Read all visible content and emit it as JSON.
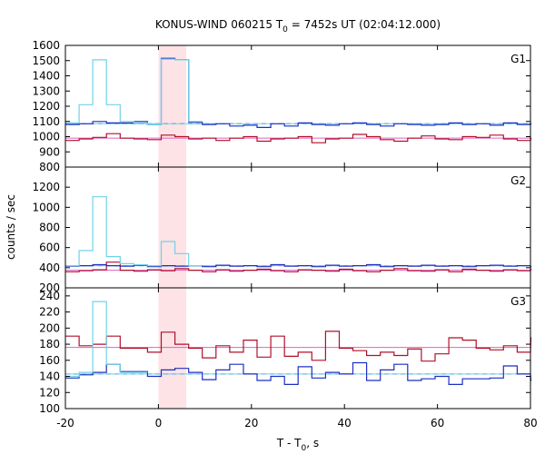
{
  "chart_data": {
    "type": "line",
    "title_main": "KONUS-WIND 060215 T",
    "title_sub": "0",
    "title_rest": " = 7452s UT (02:04:12.000)",
    "xlabel_main": "T - T",
    "xlabel_sub": "0",
    "xlabel_rest": ", s",
    "ylabel": "counts / sec",
    "xlim": [
      -20,
      80
    ],
    "xticks": [
      -20,
      0,
      20,
      40,
      60,
      80
    ],
    "interval_start": 0,
    "interval_end": 6,
    "colors": {
      "blue": "#1f2fc2",
      "cyan": "#6fd3e8",
      "red": "#b0102a",
      "pink": "#e060c0",
      "shade": "#fde3e6"
    },
    "panels": [
      {
        "label": "G1",
        "ylim": [
          800,
          1600
        ],
        "yticks": [
          800,
          900,
          1000,
          1100,
          1200,
          1300,
          1400,
          1500,
          1600
        ],
        "bg_blue": 1085,
        "bg_red": 990,
        "cyan": {
          "x0": -20,
          "dx": 2.944,
          "values": [
            1090,
            1210,
            1505,
            1210,
            1100,
            1090,
            1080,
            1510,
            1505,
            1100
          ]
        },
        "blue": {
          "x0": -20,
          "dx": 2.944,
          "values": [
            1080,
            1085,
            1100,
            1090,
            1090,
            1100,
            1080,
            1515,
            1505,
            1095,
            1080,
            1085,
            1070,
            1075,
            1060,
            1085,
            1070,
            1090,
            1080,
            1075,
            1085,
            1090,
            1080,
            1070,
            1085,
            1080,
            1075,
            1080,
            1090,
            1080,
            1085,
            1075,
            1090,
            1080,
            1085
          ]
        },
        "red": {
          "x0": -20,
          "dx": 2.944,
          "values": [
            975,
            985,
            995,
            1020,
            990,
            985,
            980,
            1010,
            1000,
            985,
            990,
            975,
            990,
            1000,
            970,
            985,
            990,
            1000,
            960,
            985,
            990,
            1015,
            1000,
            980,
            970,
            990,
            1005,
            985,
            980,
            1000,
            995,
            1010,
            985,
            975,
            990
          ]
        }
      },
      {
        "label": "G2",
        "ylim": [
          200,
          1400
        ],
        "yticks": [
          200,
          400,
          600,
          800,
          1000,
          1200
        ],
        "bg_blue": 420,
        "bg_red": 375,
        "cyan": {
          "x0": -20,
          "dx": 2.944,
          "values": [
            420,
            570,
            1105,
            510,
            440,
            430,
            420,
            660,
            540,
            420
          ]
        },
        "blue": {
          "x0": -20,
          "dx": 2.944,
          "values": [
            415,
            420,
            430,
            420,
            415,
            425,
            410,
            420,
            415,
            420,
            410,
            425,
            415,
            420,
            410,
            430,
            415,
            420,
            410,
            425,
            415,
            420,
            430,
            410,
            420,
            415,
            425,
            415,
            420,
            410,
            420,
            425,
            415,
            420,
            410
          ]
        },
        "red": {
          "x0": -20,
          "dx": 2.944,
          "values": [
            360,
            370,
            380,
            455,
            375,
            365,
            380,
            370,
            390,
            375,
            360,
            380,
            365,
            375,
            385,
            370,
            360,
            380,
            375,
            365,
            385,
            370,
            360,
            375,
            390,
            370,
            365,
            380,
            360,
            385,
            375,
            365,
            380,
            370,
            385
          ]
        }
      },
      {
        "label": "G3",
        "ylim": [
          100,
          250
        ],
        "yticks": [
          100,
          120,
          140,
          160,
          180,
          200,
          220,
          240
        ],
        "bg_blue": 143,
        "bg_red": 176,
        "cyan": {
          "x0": -20,
          "dx": 2.944,
          "values": [
            140,
            145,
            233,
            155,
            145,
            145
          ]
        },
        "blue": {
          "x0": -20,
          "dx": 2.944,
          "values": [
            138,
            142,
            145,
            155,
            146,
            146,
            140,
            148,
            150,
            145,
            136,
            148,
            155,
            143,
            135,
            140,
            130,
            152,
            138,
            145,
            143,
            157,
            135,
            148,
            155,
            135,
            137,
            140,
            130,
            137,
            137,
            138,
            153,
            143,
            135
          ]
        },
        "red": {
          "x0": -20,
          "dx": 2.944,
          "values": [
            190,
            178,
            180,
            190,
            175,
            175,
            170,
            195,
            180,
            175,
            163,
            178,
            170,
            185,
            164,
            190,
            165,
            170,
            160,
            196,
            175,
            172,
            166,
            170,
            166,
            174,
            159,
            168,
            188,
            185,
            175,
            173,
            178,
            170,
            188
          ]
        }
      }
    ]
  }
}
